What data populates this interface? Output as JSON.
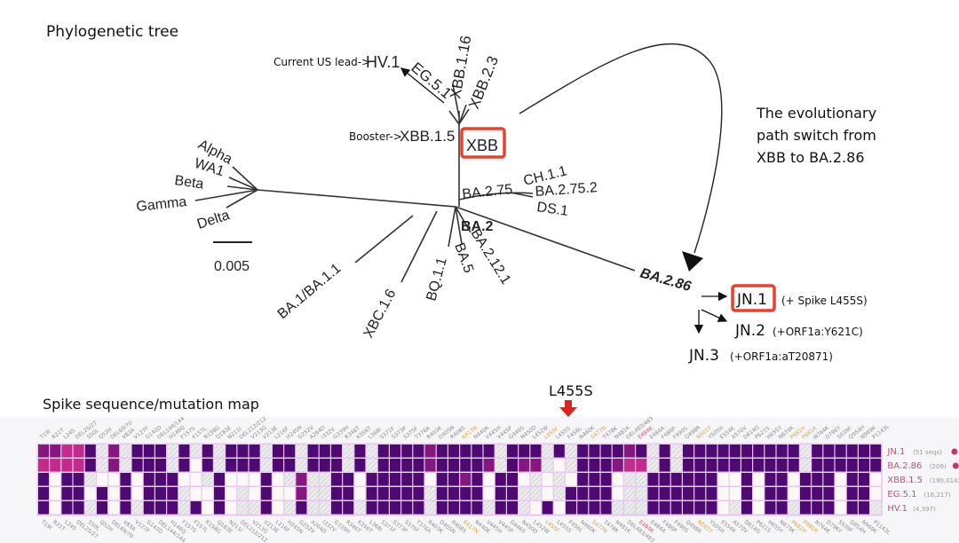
{
  "tree_section": {
    "title": "Phylogenetic tree",
    "scale_label": "0.005",
    "annotation_lines": [
      "The evolutionary",
      "path switch from",
      "XBB to BA.2.86"
    ],
    "lead_note": "Current US lead->",
    "booster_note": "Booster->",
    "nodes": {
      "hv1": "HV.1",
      "eg51": "EG.5.1",
      "xbb116": "XBB.1.16",
      "xbb23": "XBB.2.3",
      "xbb15": "XBB.1.5",
      "xbb": "XBB",
      "alpha": "Alpha",
      "wa1": "WA1",
      "beta": "Beta",
      "gamma": "Gamma",
      "delta": "Delta",
      "ba275": "BA.2.75",
      "ch11": "CH.1.1",
      "ba2752": "BA.2.75.2",
      "ds1": "DS.1",
      "ba2": "BA.2",
      "ba1": "BA.1/BA.1.1",
      "xbc16": "XBC.1.6",
      "bq11": "BQ.1.1",
      "ba5": "BA.5",
      "ba2121": "BA.2.12.1",
      "ba286": "BA.2.86",
      "jn1": "JN.1",
      "jn2": "JN.2",
      "jn3": "JN.3"
    },
    "jn1_note": "(+ Spike L455S)",
    "jn2_note": "(+ORF1a:Y621C)",
    "jn3_note": "(+ORF1a:aT20871)",
    "highlight_color": "#e8402a"
  },
  "map_section": {
    "title": "Spike sequence/mutation map",
    "callout": "L455S",
    "callout_arrow_color": "#d8261c",
    "mutations": [
      "T19I",
      "R21T",
      "L24S",
      "DEL25/27",
      "S50L",
      "Q52H",
      "DEL69/70",
      "V83A",
      "V127F",
      "G142D",
      "DEL144/144",
      "H146Q",
      "F157S",
      "F157L",
      "R158G",
      "Q183E",
      "N211I",
      "DEL212/212",
      "V213G",
      "V213E",
      "L216F",
      "H245N",
      "G252V",
      "A264D",
      "I332V",
      "G339H",
      "R346T",
      "K356T",
      "L368I",
      "S371F",
      "S373P",
      "S375F",
      "T376A",
      "R403K",
      "D405N",
      "R408S",
      "K417N",
      "N440K",
      "V445H",
      "V445P",
      "G446S",
      "N450D",
      "L452W",
      "L455F",
      "L455S",
      "F456L",
      "N460K",
      "S477N",
      "T478K",
      "N481K",
      "DEL483/483",
      "E484K",
      "E484A",
      "F486P",
      "F490S",
      "Q498R",
      "N501Y",
      "Y505H",
      "E554K",
      "A570V",
      "D614G",
      "P621S",
      "H655Y",
      "N679K",
      "P681H",
      "P681R",
      "N764K",
      "D796Y",
      "S939F",
      "Q954H",
      "N969K",
      "P1143L"
    ],
    "highlighted_mutations_orange": [
      "K417N",
      "L455F",
      "S477N",
      "N501Y",
      "P681H",
      "P681R"
    ],
    "highlighted_mutations_red": [
      "E484K"
    ],
    "cell_legend": {
      "D": "#4e0a72",
      "M": "#86177e",
      "P": "#c22a8c",
      "W": "#fbf8f5",
      "H": "hatched"
    },
    "rows": [
      {
        "name": "JN.1",
        "count": "(51 seqs)",
        "badge": true,
        "cells": "MMPPDHMHDDDHDHDHDDDHDDHDDDHDHDDDDMDDDDDHDDDHDHDDDDMDHDHDDDDDDDDDDHDDDDDD"
      },
      {
        "name": "BA.2.86",
        "count": "(209)",
        "badge": true,
        "cells": "PPPPDHMHDDDHDWDHDDDHDDHDDDHDHDDDDMDDDDMHDMMHWHDDDMPPHDHDDDDDDDDDDHDDDDDD"
      },
      {
        "name": "XBB.1.5",
        "count": "(190,014)",
        "badge": false,
        "cells": "DWDDHWWDWDDDWWHDWWWDWHMHHDDWDDDDDWDDMDWDDWHWHWDDDWHHDDDDDDWWDWDDWDDDWDDW"
      },
      {
        "name": "EG.5.1",
        "count": "(16,217)",
        "badge": false,
        "cells": "DWDDWDWDWDDDHWWDWHWDWWMHHDDWDDDDDHDDDDWDDHHWHDDDDWHHDDDDDDWWDWDDWDDDWDDW"
      },
      {
        "name": "HV.1",
        "count": "(4,397)",
        "badge": false,
        "cells": "DWDDHDWDHDDDHDWDWHHDWHDHHDDHDDDDDHDDDDHDDHWDWDDDDHHHDDDDDDWHDWDDHDDDWDDH"
      }
    ],
    "row_label_color": "#c4507e",
    "badge_color": "#c8366e"
  }
}
